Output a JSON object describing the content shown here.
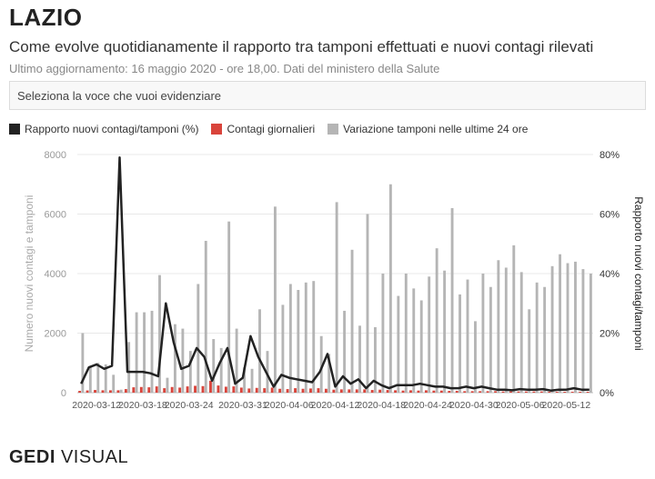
{
  "header": {
    "title": "LAZIO",
    "subtitle": "Come evolve quotidianamente il rapporto tra tamponi effettuati e nuovi contagi rilevati",
    "note": "Ultimo aggiornamento: 16 maggio 2020 - ore 18,00. Dati del ministero della Salute"
  },
  "selector": {
    "placeholder": "Seleziona la voce che vuoi evidenziare"
  },
  "legend": [
    {
      "label": "Rapporto nuovi contagi/tamponi (%)",
      "color": "#222222",
      "kind": "line"
    },
    {
      "label": "Contagi giornalieri",
      "color": "#d9443b",
      "kind": "bar"
    },
    {
      "label": "Variazione tamponi nelle ultime 24 ore",
      "color": "#b5b5b5",
      "kind": "bar"
    }
  ],
  "footer": {
    "brand": "GEDI",
    "suffix": " VISUAL"
  },
  "chart_data": {
    "type": "bar",
    "x": [
      "2020-03-10",
      "2020-03-11",
      "2020-03-12",
      "2020-03-13",
      "2020-03-14",
      "2020-03-15",
      "2020-03-16",
      "2020-03-17",
      "2020-03-18",
      "2020-03-19",
      "2020-03-20",
      "2020-03-21",
      "2020-03-22",
      "2020-03-23",
      "2020-03-24",
      "2020-03-25",
      "2020-03-26",
      "2020-03-27",
      "2020-03-28",
      "2020-03-29",
      "2020-03-30",
      "2020-03-31",
      "2020-04-01",
      "2020-04-02",
      "2020-04-03",
      "2020-04-04",
      "2020-04-05",
      "2020-04-06",
      "2020-04-07",
      "2020-04-08",
      "2020-04-09",
      "2020-04-10",
      "2020-04-11",
      "2020-04-12",
      "2020-04-13",
      "2020-04-14",
      "2020-04-15",
      "2020-04-16",
      "2020-04-17",
      "2020-04-18",
      "2020-04-19",
      "2020-04-20",
      "2020-04-21",
      "2020-04-22",
      "2020-04-23",
      "2020-04-24",
      "2020-04-25",
      "2020-04-26",
      "2020-04-27",
      "2020-04-28",
      "2020-04-29",
      "2020-04-30",
      "2020-05-01",
      "2020-05-02",
      "2020-05-03",
      "2020-05-04",
      "2020-05-05",
      "2020-05-06",
      "2020-05-07",
      "2020-05-08",
      "2020-05-09",
      "2020-05-10",
      "2020-05-11",
      "2020-05-12",
      "2020-05-13",
      "2020-05-14",
      "2020-05-15"
    ],
    "x_ticks": [
      "2020-03-12",
      "2020-03-18",
      "2020-03-24",
      "2020-03-31",
      "2020-04-06",
      "2020-04-12",
      "2020-04-18",
      "2020-04-24",
      "2020-04-30",
      "2020-05-06",
      "2020-05-12"
    ],
    "y_left": {
      "label": "Numero nuovi contagi e tamponi",
      "range": [
        0,
        8000
      ],
      "ticks": [
        0,
        2000,
        4000,
        6000,
        8000
      ]
    },
    "y_right": {
      "label": "Rapporto nuovi contagi/tamponi",
      "range": [
        0,
        80
      ],
      "ticks": [
        0,
        20,
        40,
        60,
        80
      ],
      "unit": "%"
    },
    "series": [
      {
        "name": "Variazione tamponi nelle ultime 24 ore",
        "type": "bar",
        "axis": "left",
        "color": "#b5b5b5",
        "values": [
          2000,
          900,
          1000,
          950,
          600,
          100,
          1700,
          2700,
          2700,
          2750,
          3950,
          500,
          2300,
          2150,
          1400,
          3650,
          5100,
          1800,
          1500,
          5750,
          2150,
          850,
          800,
          2800,
          1400,
          6250,
          2950,
          3650,
          3450,
          3700,
          3750,
          1900,
          1300,
          6400,
          2750,
          4800,
          2250,
          6000,
          2200,
          4000,
          7000,
          3250,
          4000,
          3500,
          3100,
          3900,
          4850,
          4100,
          6200,
          3300,
          3800,
          2400,
          4000,
          3550,
          4450,
          4200,
          4950,
          4050,
          2800,
          3700,
          3550,
          4250,
          4650,
          4350,
          4400,
          4150,
          4000
        ]
      },
      {
        "name": "Contagi giornalieri",
        "type": "bar",
        "axis": "left",
        "color": "#d9443b",
        "values": [
          60,
          75,
          90,
          80,
          80,
          80,
          120,
          180,
          190,
          180,
          210,
          150,
          190,
          170,
          210,
          230,
          220,
          400,
          240,
          200,
          210,
          170,
          140,
          160,
          150,
          170,
          130,
          120,
          150,
          130,
          140,
          150,
          130,
          100,
          110,
          110,
          110,
          110,
          90,
          100,
          90,
          80,
          70,
          80,
          70,
          80,
          70,
          70,
          60,
          60,
          50,
          50,
          50,
          50,
          50,
          40,
          40,
          40,
          40,
          40,
          40,
          30,
          30,
          30,
          30,
          30,
          30
        ]
      },
      {
        "name": "Rapporto nuovi contagi/tamponi (%)",
        "type": "line",
        "axis": "right",
        "color": "#222222",
        "values": [
          3,
          8.5,
          9.5,
          8,
          9,
          79,
          7,
          7,
          7,
          6.5,
          5.5,
          30,
          17,
          8,
          9,
          15,
          12,
          4,
          10,
          15,
          3,
          5,
          19,
          12,
          7,
          2,
          6,
          5,
          4.5,
          4,
          3.5,
          7,
          13,
          2,
          5.5,
          3,
          4.5,
          1.5,
          4,
          2.5,
          1.5,
          2.5,
          2.5,
          2.5,
          3,
          2.5,
          2,
          2,
          1.5,
          1.5,
          2,
          1.5,
          2,
          1.5,
          1,
          1,
          0.8,
          1.2,
          1,
          1,
          1.2,
          0.7,
          1,
          1,
          1.5,
          1,
          1
        ]
      }
    ],
    "legend_position": "top-left",
    "grid": true
  }
}
